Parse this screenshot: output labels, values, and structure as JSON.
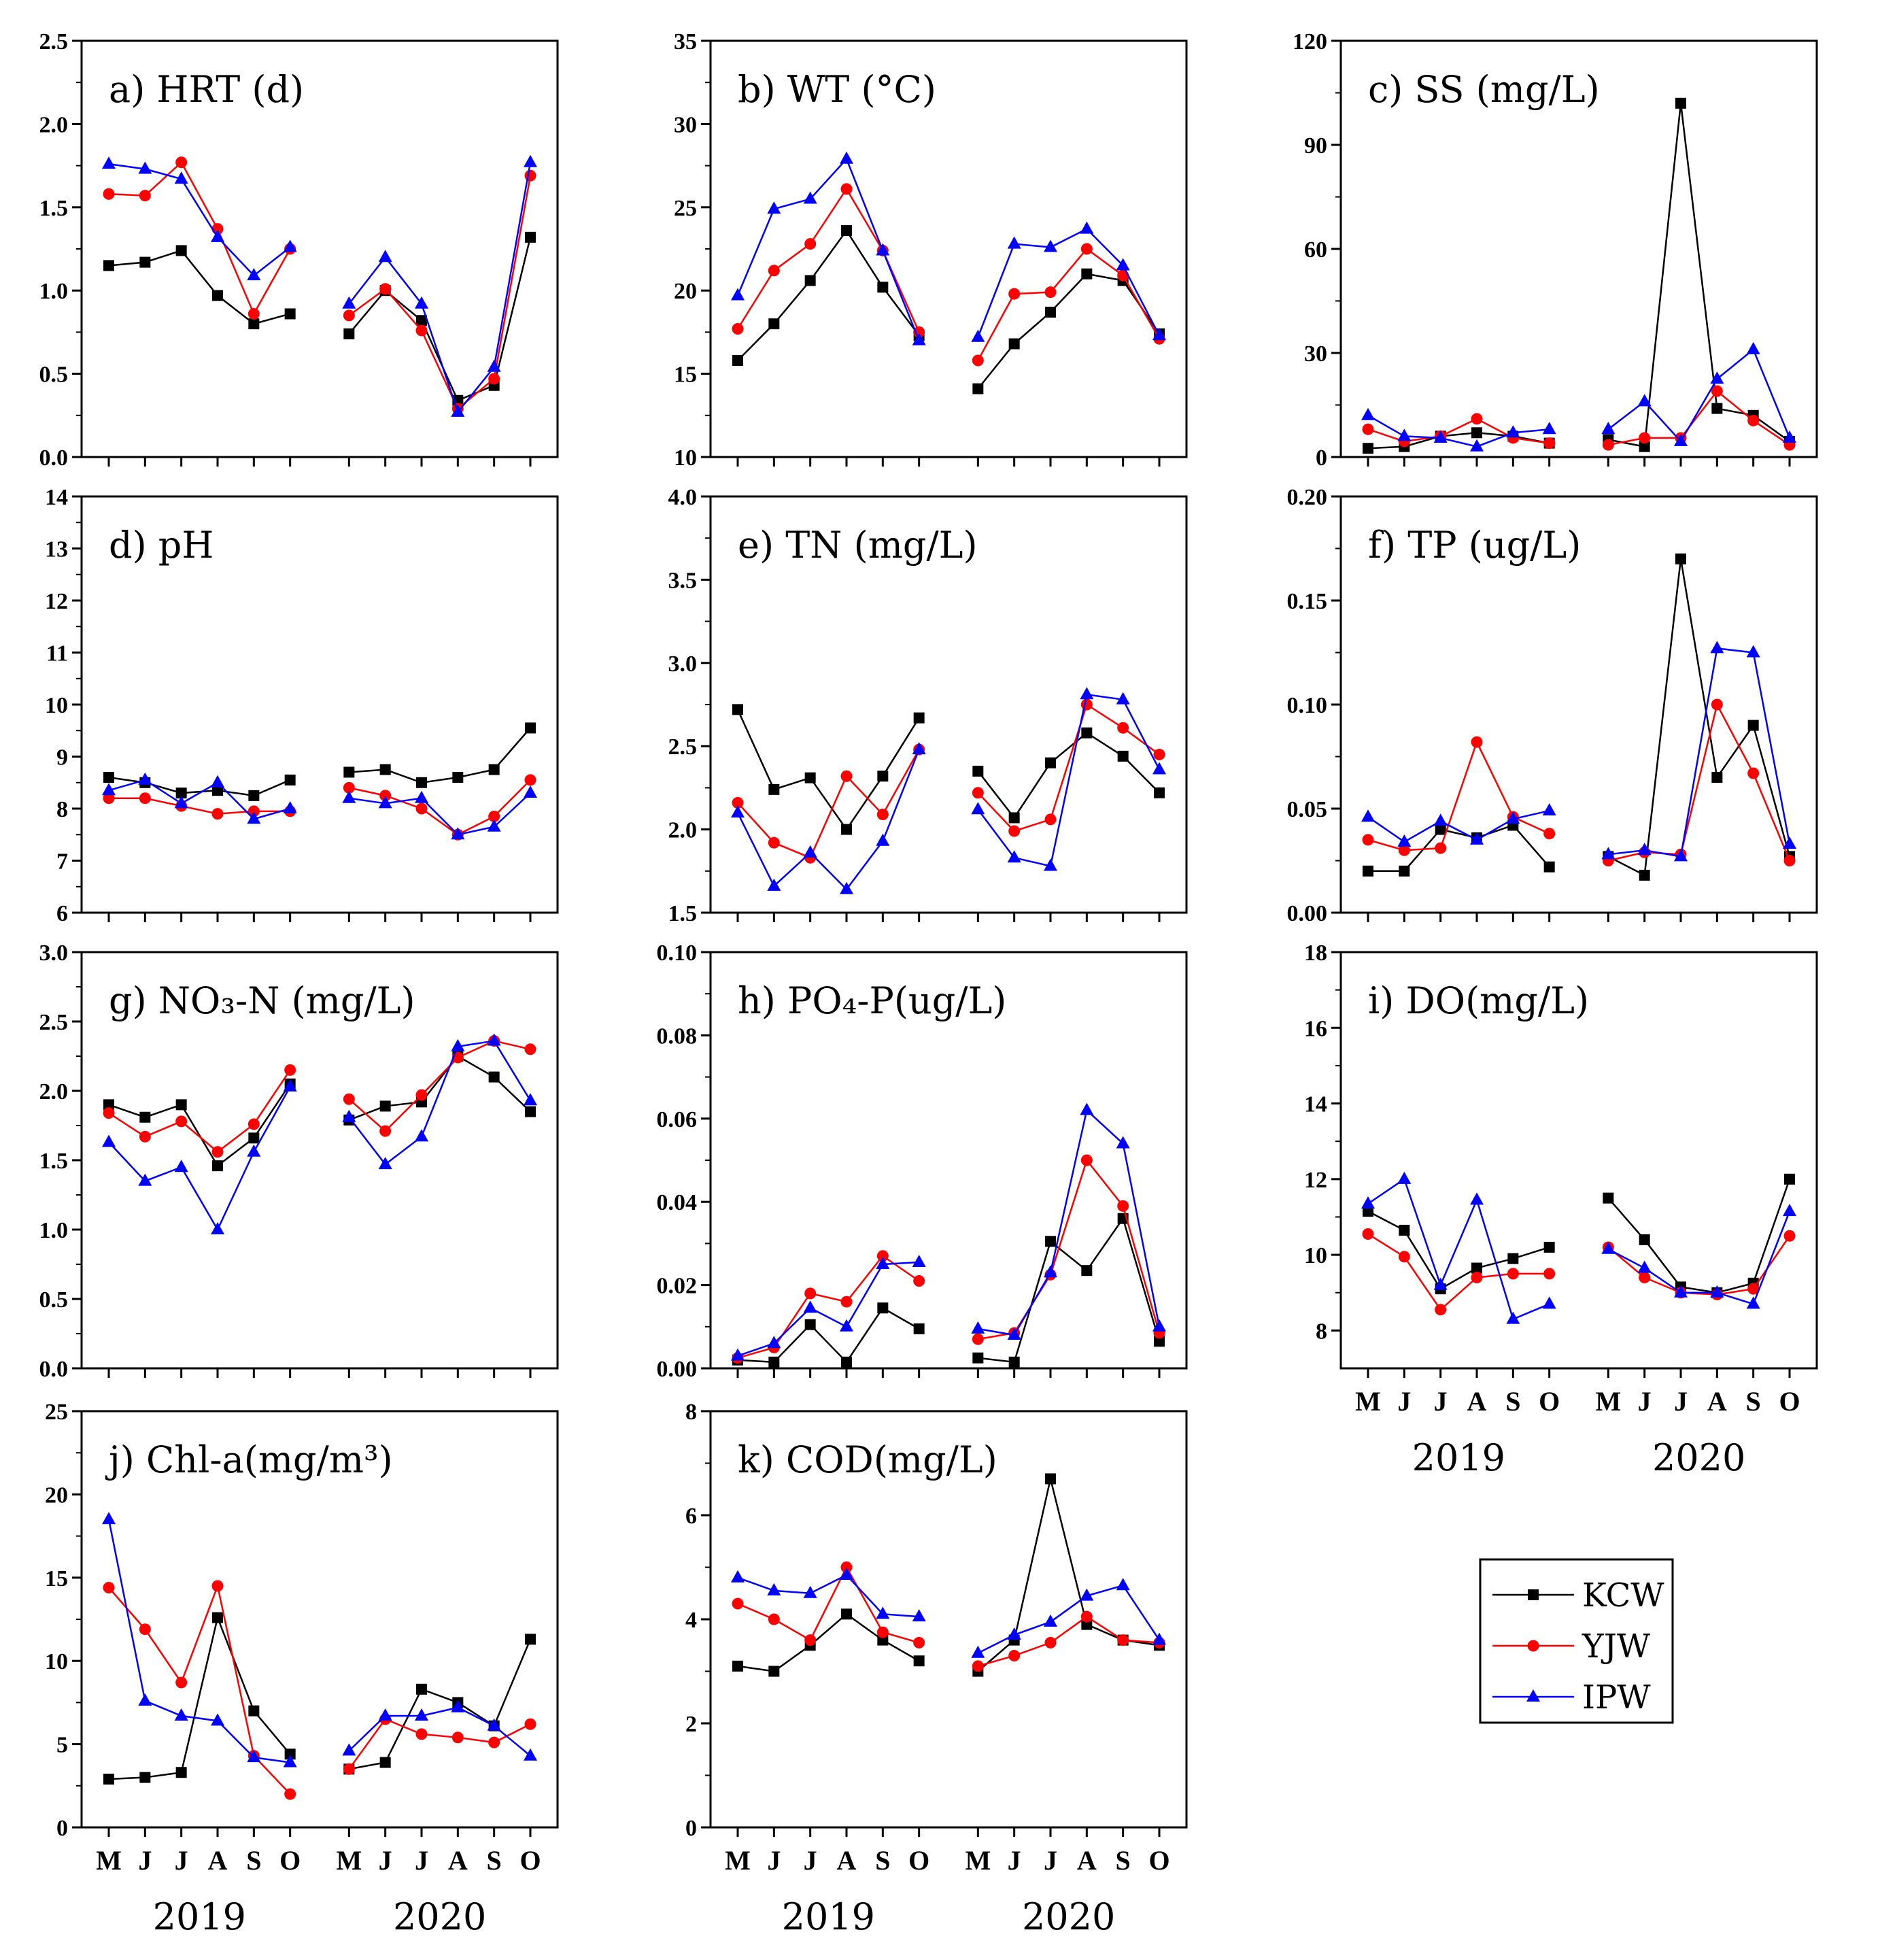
{
  "figure": {
    "x_months": [
      "M",
      "J",
      "J",
      "A",
      "S",
      "O"
    ],
    "year_labels": [
      "2019",
      "2020"
    ],
    "legend": [
      {
        "name": "KCW",
        "color": "#000000",
        "marker": "square"
      },
      {
        "name": "YJW",
        "color": "#ff0000",
        "marker": "circle"
      },
      {
        "name": "IPW",
        "color": "#0000ff",
        "marker": "triangle"
      }
    ]
  },
  "chart_data": [
    {
      "id": "a",
      "type": "line",
      "title": "a) HRT (d)",
      "ylim": [
        0,
        2.5
      ],
      "yticks": [
        0.0,
        0.5,
        1.0,
        1.5,
        2.0,
        2.5
      ],
      "ytick_labels": [
        "0.0",
        "0.5",
        "1.0",
        "1.5",
        "2.0",
        "2.5"
      ],
      "categories": [
        "M",
        "J",
        "J",
        "A",
        "S",
        "O",
        "M",
        "J",
        "J",
        "A",
        "S",
        "O"
      ],
      "series": [
        {
          "name": "KCW",
          "values": [
            1.15,
            1.17,
            1.24,
            0.97,
            0.8,
            0.86,
            0.74,
            1.0,
            0.82,
            0.34,
            0.43,
            1.32
          ]
        },
        {
          "name": "YJW",
          "values": [
            1.58,
            1.57,
            1.77,
            1.37,
            0.86,
            1.25,
            0.85,
            1.01,
            0.76,
            0.29,
            0.47,
            1.69
          ]
        },
        {
          "name": "IPW",
          "values": [
            1.76,
            1.73,
            1.67,
            1.32,
            1.09,
            1.26,
            0.92,
            1.2,
            0.92,
            0.27,
            0.54,
            1.77
          ]
        }
      ]
    },
    {
      "id": "b",
      "type": "line",
      "title": "b) WT (°C)",
      "ylim": [
        10,
        35
      ],
      "yticks": [
        10,
        15,
        20,
        25,
        30,
        35
      ],
      "ytick_labels": [
        "10",
        "15",
        "20",
        "25",
        "30",
        "35"
      ],
      "categories": [
        "M",
        "J",
        "J",
        "A",
        "S",
        "O",
        "M",
        "J",
        "J",
        "A",
        "S",
        "O"
      ],
      "series": [
        {
          "name": "KCW",
          "values": [
            15.8,
            18.0,
            20.6,
            23.6,
            20.2,
            17.3,
            14.1,
            16.8,
            18.7,
            21.0,
            20.6,
            17.4
          ]
        },
        {
          "name": "YJW",
          "values": [
            17.7,
            21.2,
            22.8,
            26.1,
            22.4,
            17.5,
            15.8,
            19.8,
            19.9,
            22.5,
            20.9,
            17.1
          ]
        },
        {
          "name": "IPW",
          "values": [
            19.7,
            24.9,
            25.5,
            27.9,
            22.4,
            17.0,
            17.2,
            22.8,
            22.6,
            23.7,
            21.5,
            17.3
          ]
        }
      ]
    },
    {
      "id": "c",
      "type": "line",
      "title": "c) SS (mg/L)",
      "ylim": [
        0,
        120
      ],
      "yticks": [
        0,
        30,
        60,
        90,
        120
      ],
      "ytick_labels": [
        "0",
        "30",
        "60",
        "90",
        "120"
      ],
      "categories": [
        "M",
        "J",
        "J",
        "A",
        "S",
        "O",
        "M",
        "J",
        "J",
        "A",
        "S",
        "O"
      ],
      "series": [
        {
          "name": "KCW",
          "values": [
            2.5,
            3.0,
            6.0,
            7.0,
            6.0,
            4.0,
            5.0,
            3.0,
            102.0,
            14.0,
            12.0,
            4.5
          ]
        },
        {
          "name": "YJW",
          "values": [
            8.0,
            4.5,
            6.0,
            11.0,
            5.5,
            4.0,
            3.5,
            5.5,
            5.5,
            19.0,
            10.5,
            3.5
          ]
        },
        {
          "name": "IPW",
          "values": [
            12.0,
            6.0,
            5.5,
            3.0,
            7.0,
            8.0,
            8.0,
            16.0,
            4.5,
            22.5,
            31.0,
            5.5
          ]
        }
      ]
    },
    {
      "id": "d",
      "type": "line",
      "title": "d) pH",
      "ylim": [
        6,
        14
      ],
      "yticks": [
        6,
        7,
        8,
        9,
        10,
        11,
        12,
        13,
        14
      ],
      "ytick_labels": [
        "6",
        "7",
        "8",
        "9",
        "10",
        "11",
        "12",
        "13",
        "14"
      ],
      "categories": [
        "M",
        "J",
        "J",
        "A",
        "S",
        "O",
        "M",
        "J",
        "J",
        "A",
        "S",
        "O"
      ],
      "series": [
        {
          "name": "KCW",
          "values": [
            8.6,
            8.5,
            8.3,
            8.35,
            8.25,
            8.55,
            8.7,
            8.75,
            8.5,
            8.6,
            8.75,
            9.55
          ]
        },
        {
          "name": "YJW",
          "values": [
            8.2,
            8.2,
            8.05,
            7.9,
            7.95,
            7.95,
            8.4,
            8.25,
            8.0,
            7.5,
            7.85,
            8.55
          ]
        },
        {
          "name": "IPW",
          "values": [
            8.35,
            8.55,
            8.1,
            8.5,
            7.8,
            8.0,
            8.2,
            8.1,
            8.2,
            7.5,
            7.65,
            8.3
          ]
        }
      ]
    },
    {
      "id": "e",
      "type": "line",
      "title": "e) TN (mg/L)",
      "ylim": [
        1.5,
        4.0
      ],
      "yticks": [
        1.5,
        2.0,
        2.5,
        3.0,
        3.5,
        4.0
      ],
      "ytick_labels": [
        "1.5",
        "2.0",
        "2.5",
        "3.0",
        "3.5",
        "4.0"
      ],
      "categories": [
        "M",
        "J",
        "J",
        "A",
        "S",
        "O",
        "M",
        "J",
        "J",
        "A",
        "S",
        "O"
      ],
      "series": [
        {
          "name": "KCW",
          "values": [
            2.72,
            2.24,
            2.31,
            2.0,
            2.32,
            2.67,
            2.35,
            2.07,
            2.4,
            2.58,
            2.44,
            2.22
          ]
        },
        {
          "name": "YJW",
          "values": [
            2.16,
            1.92,
            1.83,
            2.32,
            2.09,
            2.48,
            2.22,
            1.99,
            2.06,
            2.75,
            2.61,
            2.45
          ]
        },
        {
          "name": "IPW",
          "values": [
            2.1,
            1.66,
            1.86,
            1.64,
            1.93,
            2.48,
            2.12,
            1.83,
            1.78,
            2.81,
            2.78,
            2.36
          ]
        }
      ]
    },
    {
      "id": "f",
      "type": "line",
      "title": "f) TP (ug/L)",
      "ylim": [
        0,
        0.2
      ],
      "yticks": [
        0.0,
        0.05,
        0.1,
        0.15,
        0.2
      ],
      "ytick_labels": [
        "0.00",
        "0.05",
        "0.10",
        "0.15",
        "0.20"
      ],
      "categories": [
        "M",
        "J",
        "J",
        "A",
        "S",
        "O",
        "M",
        "J",
        "J",
        "A",
        "S",
        "O"
      ],
      "series": [
        {
          "name": "KCW",
          "values": [
            0.02,
            0.02,
            0.04,
            0.036,
            0.042,
            0.022,
            0.027,
            0.018,
            0.17,
            0.065,
            0.09,
            0.027
          ]
        },
        {
          "name": "YJW",
          "values": [
            0.035,
            0.03,
            0.031,
            0.082,
            0.046,
            0.038,
            0.025,
            0.029,
            0.028,
            0.1,
            0.067,
            0.025
          ]
        },
        {
          "name": "IPW",
          "values": [
            0.046,
            0.034,
            0.044,
            0.035,
            0.045,
            0.049,
            0.028,
            0.03,
            0.027,
            0.127,
            0.125,
            0.033
          ]
        }
      ]
    },
    {
      "id": "g",
      "type": "line",
      "title": "g) NO₃-N (mg/L)",
      "ylim": [
        0,
        3.0
      ],
      "yticks": [
        0.0,
        0.5,
        1.0,
        1.5,
        2.0,
        2.5,
        3.0
      ],
      "ytick_labels": [
        "0.0",
        "0.5",
        "1.0",
        "1.5",
        "2.0",
        "2.5",
        "3.0"
      ],
      "categories": [
        "M",
        "J",
        "J",
        "A",
        "S",
        "O",
        "M",
        "J",
        "J",
        "A",
        "S",
        "O"
      ],
      "series": [
        {
          "name": "KCW",
          "values": [
            1.9,
            1.81,
            1.9,
            1.46,
            1.66,
            2.05,
            1.79,
            1.89,
            1.92,
            2.25,
            2.1,
            1.85
          ]
        },
        {
          "name": "YJW",
          "values": [
            1.84,
            1.67,
            1.78,
            1.56,
            1.76,
            2.15,
            1.94,
            1.71,
            1.97,
            2.24,
            2.36,
            2.3
          ]
        },
        {
          "name": "IPW",
          "values": [
            1.63,
            1.35,
            1.45,
            1.0,
            1.56,
            2.03,
            1.81,
            1.47,
            1.67,
            2.32,
            2.36,
            1.93
          ]
        }
      ]
    },
    {
      "id": "h",
      "type": "line",
      "title": "h) PO₄-P(ug/L)",
      "ylim": [
        0,
        0.1
      ],
      "yticks": [
        0.0,
        0.02,
        0.04,
        0.06,
        0.08,
        0.1
      ],
      "ytick_labels": [
        "0.00",
        "0.02",
        "0.04",
        "0.06",
        "0.08",
        "0.10"
      ],
      "categories": [
        "M",
        "J",
        "J",
        "A",
        "S",
        "O",
        "M",
        "J",
        "J",
        "A",
        "S",
        "O"
      ],
      "series": [
        {
          "name": "KCW",
          "values": [
            0.002,
            0.0015,
            0.0105,
            0.0015,
            0.0145,
            0.0095,
            0.0025,
            0.0015,
            0.0305,
            0.0235,
            0.036,
            0.0065
          ]
        },
        {
          "name": "YJW",
          "values": [
            0.0025,
            0.005,
            0.018,
            0.016,
            0.027,
            0.021,
            0.007,
            0.0085,
            0.0225,
            0.05,
            0.039,
            0.0085
          ]
        },
        {
          "name": "IPW",
          "values": [
            0.003,
            0.006,
            0.0145,
            0.01,
            0.025,
            0.0255,
            0.0095,
            0.008,
            0.023,
            0.062,
            0.054,
            0.01
          ]
        }
      ]
    },
    {
      "id": "i",
      "type": "line",
      "title": "i) DO(mg/L)",
      "ylim": [
        7,
        18
      ],
      "yticks": [
        8,
        10,
        12,
        14,
        16,
        18
      ],
      "ytick_labels": [
        "8",
        "10",
        "12",
        "14",
        "16",
        "18"
      ],
      "categories": [
        "M",
        "J",
        "J",
        "A",
        "S",
        "O",
        "M",
        "J",
        "J",
        "A",
        "S",
        "O"
      ],
      "series": [
        {
          "name": "KCW",
          "values": [
            11.15,
            10.65,
            9.1,
            9.65,
            9.9,
            10.2,
            11.5,
            10.4,
            9.15,
            9.0,
            9.25,
            12.0
          ]
        },
        {
          "name": "YJW",
          "values": [
            10.55,
            9.95,
            8.55,
            9.4,
            9.5,
            9.5,
            10.2,
            9.4,
            9.0,
            8.95,
            9.1,
            10.5
          ]
        },
        {
          "name": "IPW",
          "values": [
            11.35,
            12.0,
            9.2,
            11.45,
            8.3,
            8.7,
            10.15,
            9.65,
            9.0,
            9.0,
            8.7,
            11.15
          ]
        }
      ]
    },
    {
      "id": "j",
      "type": "line",
      "title": "j) Chl-a(mg/m³)",
      "ylim": [
        0,
        25
      ],
      "yticks": [
        0,
        5,
        10,
        15,
        20,
        25
      ],
      "ytick_labels": [
        "0",
        "5",
        "10",
        "15",
        "20",
        "25"
      ],
      "categories": [
        "M",
        "J",
        "J",
        "A",
        "S",
        "O",
        "M",
        "J",
        "J",
        "A",
        "S",
        "O"
      ],
      "series": [
        {
          "name": "KCW",
          "values": [
            2.9,
            3.0,
            3.3,
            12.6,
            7.0,
            4.4,
            3.5,
            3.9,
            8.3,
            7.5,
            6.1,
            11.3
          ]
        },
        {
          "name": "YJW",
          "values": [
            14.4,
            11.9,
            8.7,
            14.5,
            4.3,
            2.0,
            3.5,
            6.5,
            5.6,
            5.4,
            5.1,
            6.2
          ]
        },
        {
          "name": "IPW",
          "values": [
            18.5,
            7.6,
            6.7,
            6.4,
            4.2,
            3.9,
            4.6,
            6.7,
            6.7,
            7.2,
            6.1,
            4.3
          ]
        }
      ]
    },
    {
      "id": "k",
      "type": "line",
      "title": "k) COD(mg/L)",
      "ylim": [
        0,
        8
      ],
      "yticks": [
        0,
        2,
        4,
        6,
        8
      ],
      "ytick_labels": [
        "0",
        "2",
        "4",
        "6",
        "8"
      ],
      "categories": [
        "M",
        "J",
        "J",
        "A",
        "S",
        "O",
        "M",
        "J",
        "J",
        "A",
        "S",
        "O"
      ],
      "series": [
        {
          "name": "KCW",
          "values": [
            3.1,
            3.0,
            3.5,
            4.1,
            3.6,
            3.2,
            3.0,
            3.6,
            6.7,
            3.9,
            3.6,
            3.5
          ]
        },
        {
          "name": "YJW",
          "values": [
            4.3,
            4.0,
            3.6,
            5.0,
            3.75,
            3.55,
            3.1,
            3.3,
            3.55,
            4.05,
            3.6,
            3.55
          ]
        },
        {
          "name": "IPW",
          "values": [
            4.8,
            4.55,
            4.5,
            4.85,
            4.1,
            4.05,
            3.35,
            3.7,
            3.95,
            4.45,
            4.65,
            3.6
          ]
        }
      ]
    }
  ]
}
